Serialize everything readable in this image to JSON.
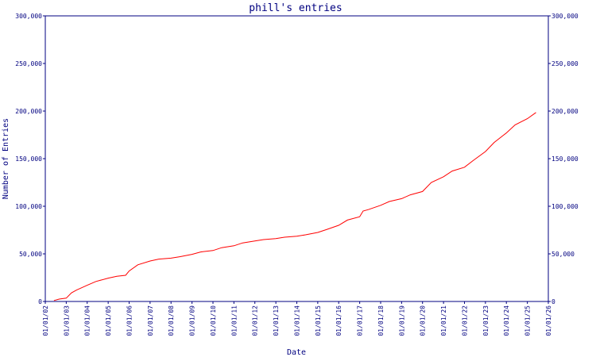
{
  "chart_data": {
    "type": "line",
    "title": "phill's entries",
    "xlabel": "Date",
    "ylabel": "Number of Entries",
    "x_tick_labels": [
      "01/01/02",
      "01/01/03",
      "01/01/04",
      "01/01/05",
      "01/01/06",
      "01/01/07",
      "01/01/08",
      "01/01/09",
      "01/01/10",
      "01/01/11",
      "01/01/12",
      "01/01/13",
      "01/01/14",
      "01/01/15",
      "01/01/16",
      "01/01/17",
      "01/01/18",
      "01/01/19",
      "01/01/20",
      "01/01/21",
      "01/01/22",
      "01/01/23",
      "01/01/24",
      "01/01/25",
      "01/01/26"
    ],
    "xlim": [
      "2002-01-01",
      "2026-01-01"
    ],
    "y_ticks": [
      0,
      50000,
      100000,
      150000,
      200000,
      250000,
      300000
    ],
    "y_tick_labels": [
      "0",
      "50,000",
      "100,000",
      "150,000",
      "200,000",
      "250,000",
      "300,000"
    ],
    "ylim": [
      0,
      300000
    ],
    "grid": false,
    "y_axis_both_sides": true,
    "colors": {
      "axes": "#000080",
      "series": "#ff0000"
    },
    "series": [
      {
        "values": [
          [
            "2002-06-01",
            1000
          ],
          [
            "2002-09-01",
            2500
          ],
          [
            "2003-01-01",
            3500
          ],
          [
            "2003-04-01",
            9000
          ],
          [
            "2003-07-01",
            12000
          ],
          [
            "2004-01-01",
            17000
          ],
          [
            "2004-06-01",
            21000
          ],
          [
            "2005-01-01",
            24500
          ],
          [
            "2005-06-01",
            26500
          ],
          [
            "2005-11-01",
            27500
          ],
          [
            "2006-01-01",
            32000
          ],
          [
            "2006-06-01",
            38500
          ],
          [
            "2007-01-01",
            42500
          ],
          [
            "2007-06-01",
            44500
          ],
          [
            "2008-01-01",
            45500
          ],
          [
            "2008-06-01",
            47000
          ],
          [
            "2009-01-01",
            49500
          ],
          [
            "2009-06-01",
            52000
          ],
          [
            "2010-01-01",
            53500
          ],
          [
            "2010-06-01",
            56500
          ],
          [
            "2011-01-01",
            58500
          ],
          [
            "2011-06-01",
            61500
          ],
          [
            "2012-01-01",
            63500
          ],
          [
            "2012-06-01",
            65000
          ],
          [
            "2013-01-01",
            66000
          ],
          [
            "2013-06-01",
            67500
          ],
          [
            "2014-01-01",
            68500
          ],
          [
            "2014-06-01",
            70000
          ],
          [
            "2015-01-01",
            72500
          ],
          [
            "2015-06-01",
            75500
          ],
          [
            "2016-01-01",
            80000
          ],
          [
            "2016-06-01",
            85500
          ],
          [
            "2017-01-01",
            89000
          ],
          [
            "2017-03-01",
            95000
          ],
          [
            "2017-06-01",
            96500
          ],
          [
            "2018-01-01",
            101000
          ],
          [
            "2018-06-01",
            105000
          ],
          [
            "2019-01-01",
            108000
          ],
          [
            "2019-06-01",
            112000
          ],
          [
            "2020-01-01",
            115500
          ],
          [
            "2020-06-01",
            125000
          ],
          [
            "2021-01-01",
            131000
          ],
          [
            "2021-06-01",
            137000
          ],
          [
            "2022-01-01",
            141000
          ],
          [
            "2022-06-01",
            148000
          ],
          [
            "2023-01-01",
            157500
          ],
          [
            "2023-06-01",
            167000
          ],
          [
            "2024-01-01",
            177000
          ],
          [
            "2024-06-01",
            185500
          ],
          [
            "2025-01-01",
            192000
          ],
          [
            "2025-06-01",
            198500
          ]
        ]
      }
    ]
  }
}
